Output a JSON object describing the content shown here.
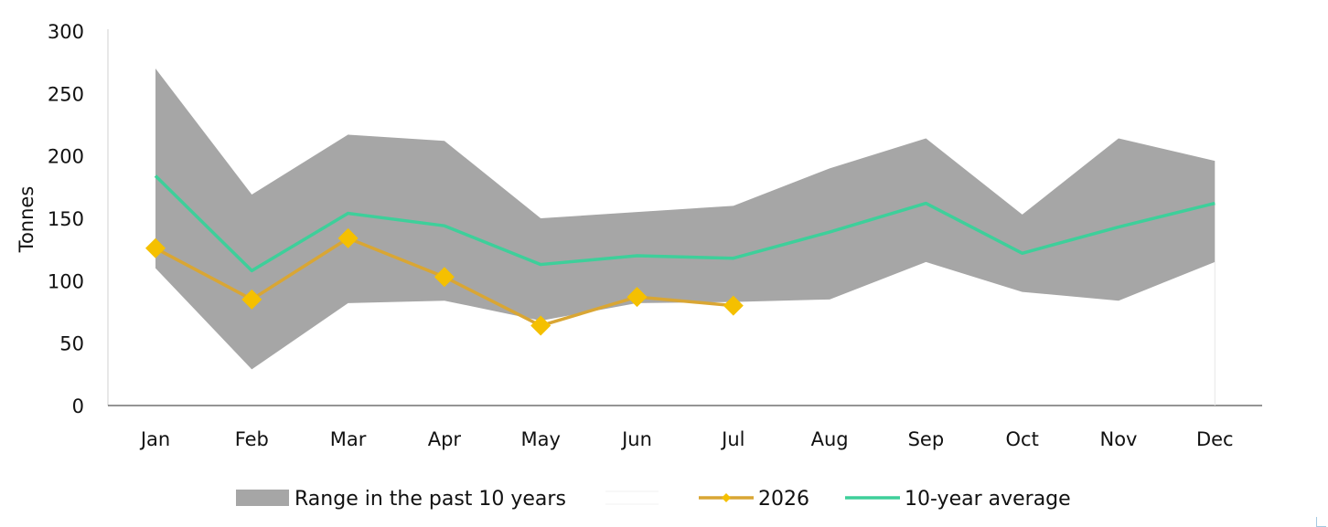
{
  "chart_data": {
    "type": "area",
    "categories": [
      "Jan",
      "Feb",
      "Mar",
      "Apr",
      "May",
      "Jun",
      "Jul",
      "Aug",
      "Sep",
      "Oct",
      "Nov",
      "Dec"
    ],
    "ylabel": "Tonnes",
    "ylim": [
      0,
      300
    ],
    "yticks": [
      "0",
      "50",
      "100",
      "150",
      "200",
      "250",
      "300"
    ],
    "grid": false,
    "legend_position": "bottom",
    "range": {
      "name": "Range in the past 10 years",
      "color": "#a6a6a6",
      "max": [
        270,
        169,
        217,
        212,
        150,
        155,
        160,
        190,
        214,
        153,
        214,
        196
      ],
      "min": [
        110,
        29,
        82,
        84,
        68,
        82,
        83,
        85,
        115,
        91,
        84,
        115
      ]
    },
    "series": [
      {
        "name": "2026",
        "color": "#f5c000",
        "line_color": "#d9a634",
        "marker": "diamond",
        "values": [
          126,
          85,
          134,
          103,
          64,
          87,
          80,
          null,
          null,
          null,
          null,
          null
        ]
      },
      {
        "name": "10-year average",
        "color": "#3ecf9a",
        "values": [
          184,
          108,
          154,
          144,
          113,
          120,
          118,
          139,
          162,
          122,
          143,
          162
        ]
      }
    ]
  }
}
